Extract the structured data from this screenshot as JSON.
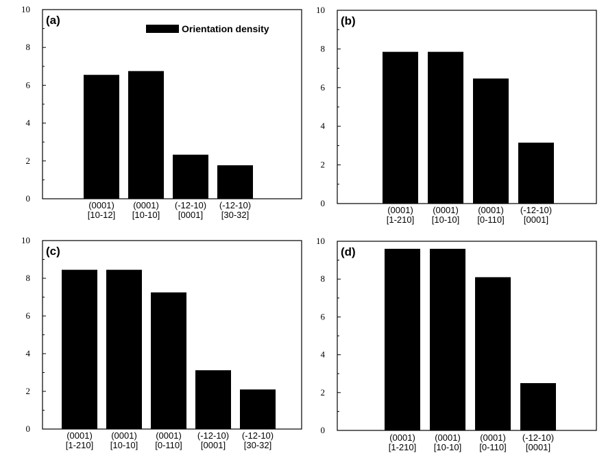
{
  "chart_data": [
    {
      "panel": "(a)",
      "type": "bar",
      "categories": [
        [
          "(0001)",
          "[10-12]"
        ],
        [
          "(0001)",
          "[10-10]"
        ],
        [
          "(-12-10)",
          "[0001]"
        ],
        [
          "(-12-10)",
          "[30-32]"
        ]
      ],
      "values": [
        6.55,
        6.75,
        2.33,
        1.77
      ],
      "ylim": [
        0,
        10
      ],
      "yticks": [
        0,
        2,
        4,
        6,
        8,
        10
      ],
      "legend": {
        "label": "Orientation density",
        "position": "top-right"
      }
    },
    {
      "panel": "(b)",
      "type": "bar",
      "categories": [
        [
          "(0001)",
          "[1-210]"
        ],
        [
          "(0001)",
          "[10-10]"
        ],
        [
          "(0001)",
          "[0-110]"
        ],
        [
          "(-12-10)",
          "[0001]"
        ]
      ],
      "values": [
        7.85,
        7.85,
        6.47,
        3.15
      ],
      "ylim": [
        0,
        10
      ],
      "yticks": [
        0,
        2,
        4,
        6,
        8,
        10
      ]
    },
    {
      "panel": "(c)",
      "type": "bar",
      "categories": [
        [
          "(0001)",
          "[1-210]"
        ],
        [
          "(0001)",
          "[10-10]"
        ],
        [
          "(0001)",
          "[0-110]"
        ],
        [
          "(-12-10)",
          "[0001]"
        ],
        [
          "(-12-10)",
          "[30-32]"
        ]
      ],
      "values": [
        8.45,
        8.45,
        7.25,
        3.12,
        2.1
      ],
      "ylim": [
        0,
        10
      ],
      "yticks": [
        0,
        2,
        4,
        6,
        8,
        10
      ]
    },
    {
      "panel": "(d)",
      "type": "bar",
      "categories": [
        [
          "(0001)",
          "[1-210]"
        ],
        [
          "(0001)",
          "[10-10]"
        ],
        [
          "(0001)",
          "[0-110]"
        ],
        [
          "(-12-10)",
          "[0001]"
        ]
      ],
      "values": [
        9.6,
        9.6,
        8.1,
        2.5
      ],
      "ylim": [
        0,
        10
      ],
      "yticks": [
        0,
        2,
        4,
        6,
        8,
        10
      ]
    }
  ],
  "colors": {
    "bar": "#000000",
    "axis": "#000000",
    "background": "#ffffff"
  }
}
